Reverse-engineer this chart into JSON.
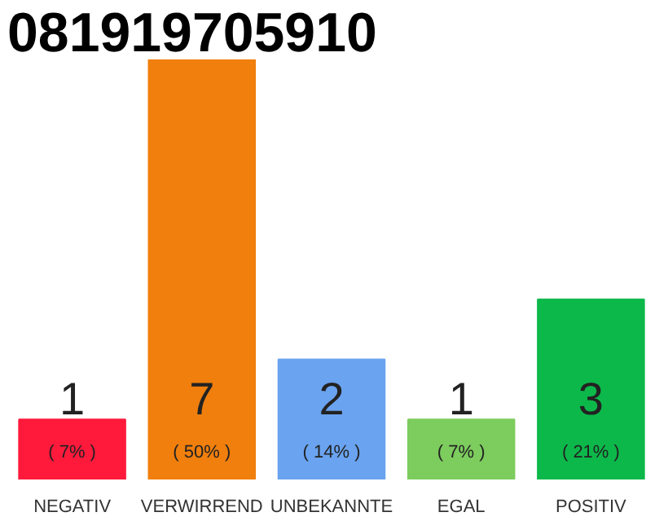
{
  "chart_data": {
    "type": "bar",
    "title": "081919705910",
    "categories": [
      "NEGATIV",
      "VERWIRREND",
      "UNBEKANNTE",
      "EGAL",
      "POSITIV"
    ],
    "values": [
      1,
      7,
      2,
      1,
      3
    ],
    "colors": [
      "#ff1a3c",
      "#f07f0d",
      "#6aa3ef",
      "#7dcc5e",
      "#0db84a"
    ],
    "data_labels": true,
    "annotations": [
      "( 7% )",
      "( 50% )",
      "( 14% )",
      "( 7% )",
      "( 21% )"
    ],
    "grid": false
  }
}
